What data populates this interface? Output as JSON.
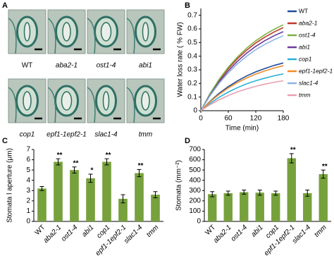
{
  "panel_a": {
    "panel": "A",
    "labels": [
      "WT",
      "aba2-1",
      "ost1-4",
      "abi1",
      "cop1",
      "epf1-1epf2-1",
      "slac1-4",
      "tmm"
    ]
  },
  "chart_data": [
    {
      "type": "line",
      "panel": "B",
      "xlabel": "Time (min)",
      "ylabel": "Water loss rate ( % FW)",
      "x": [
        0,
        20,
        40,
        60,
        80,
        100,
        120,
        140,
        160,
        180
      ],
      "xlim": [
        0,
        180
      ],
      "xticks": [
        0,
        60,
        120,
        180
      ],
      "ylim": [
        0,
        0.75
      ],
      "yticks": [
        0,
        0.1,
        0.2,
        0.3,
        0.4,
        0.5,
        0.6,
        0.7
      ],
      "series": [
        {
          "name": "WT",
          "color": "#1f4e9b",
          "values": [
            0,
            0.069,
            0.128,
            0.177,
            0.219,
            0.255,
            0.285,
            0.31,
            0.332,
            0.35
          ]
        },
        {
          "name": "aba2-1",
          "color": "#c0392b",
          "values": [
            0,
            0.121,
            0.223,
            0.309,
            0.382,
            0.444,
            0.497,
            0.54,
            0.578,
            0.61
          ]
        },
        {
          "name": "ost1-4",
          "color": "#7cb342",
          "values": [
            0,
            0.125,
            0.23,
            0.319,
            0.394,
            0.459,
            0.513,
            0.558,
            0.597,
            0.63
          ]
        },
        {
          "name": "abi1",
          "color": "#6a3d9a",
          "values": [
            0,
            0.115,
            0.212,
            0.293,
            0.363,
            0.422,
            0.472,
            0.514,
            0.55,
            0.58
          ]
        },
        {
          "name": "cop1",
          "color": "#2bb0d8",
          "values": [
            0,
            0.053,
            0.099,
            0.137,
            0.169,
            0.197,
            0.22,
            0.239,
            0.256,
            0.27
          ]
        },
        {
          "name": "epf1-1epf2-1",
          "color": "#f28c28",
          "values": [
            0,
            0.065,
            0.12,
            0.167,
            0.207,
            0.24,
            0.269,
            0.292,
            0.313,
            0.33
          ]
        },
        {
          "name": "slac1-4",
          "color": "#8fb4e3",
          "values": [
            0,
            0.109,
            0.201,
            0.278,
            0.344,
            0.4,
            0.448,
            0.487,
            0.521,
            0.55
          ]
        },
        {
          "name": "tmm",
          "color": "#e8a0b0",
          "values": [
            0,
            0.044,
            0.08,
            0.111,
            0.138,
            0.16,
            0.179,
            0.195,
            0.209,
            0.22
          ]
        }
      ]
    },
    {
      "type": "bar",
      "panel": "C",
      "ylabel": "Stomata l aperture (μm)",
      "color": "#77a13c",
      "categories": [
        "WT",
        "aba2-1",
        "ost1-4",
        "abi1",
        "cop1",
        "epf1-1epf2-1",
        "slac1-4",
        "tmm"
      ],
      "values": [
        3.2,
        5.8,
        5.0,
        4.2,
        5.8,
        2.2,
        4.7,
        2.6
      ],
      "errors": [
        0.2,
        0.3,
        0.3,
        0.4,
        0.3,
        0.4,
        0.35,
        0.3
      ],
      "annotations": [
        null,
        "**",
        "**",
        "*",
        "**",
        null,
        "**",
        null
      ],
      "ylim": [
        0,
        7
      ],
      "yticks": [
        0,
        1,
        2,
        3,
        4,
        5,
        6,
        7
      ]
    },
    {
      "type": "bar",
      "panel": "D",
      "ylabel": "Stomata (mm⁻²)",
      "color": "#77a13c",
      "categories": [
        "WT",
        "aba2-1",
        "ost1-4",
        "abi1",
        "cop1",
        "epf1-1epf2-1",
        "slac1-4",
        "tmm"
      ],
      "values": [
        265,
        275,
        285,
        280,
        275,
        615,
        275,
        460
      ],
      "errors": [
        25,
        20,
        20,
        25,
        20,
        45,
        30,
        40
      ],
      "annotations": [
        null,
        null,
        null,
        null,
        null,
        "**",
        null,
        "**"
      ],
      "ylim": [
        0,
        700
      ],
      "yticks": [
        0,
        100,
        200,
        300,
        400,
        500,
        600,
        700
      ]
    }
  ]
}
